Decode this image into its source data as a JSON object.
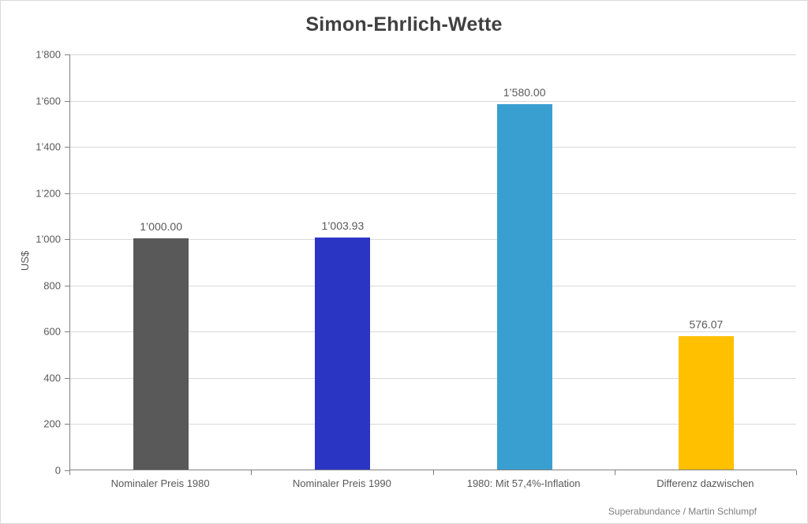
{
  "title": "Simon-Ehrlich-Wette",
  "credit": "Superabundance / Martin Schlumpf",
  "chart_data": {
    "type": "bar",
    "title": "Simon-Ehrlich-Wette",
    "xlabel": "",
    "ylabel": "US$",
    "ylim": [
      0,
      1800
    ],
    "ytick_step": 200,
    "grid": true,
    "legend": "none",
    "categories": [
      "Nominaler Preis 1980",
      "Nominaler Preis 1990",
      "1980: Mit 57,4%-Inflation",
      "Differenz dazwischen"
    ],
    "values": [
      1000.0,
      1003.93,
      1580.0,
      576.07
    ],
    "value_labels": [
      "1’000.00",
      "1’003.93",
      "1’580.00",
      "576.07"
    ],
    "bar_colors": [
      "#595959",
      "#2B35C4",
      "#399FD0",
      "#FFC000"
    ],
    "ytick_labels": [
      "0",
      "200",
      "400",
      "600",
      "800",
      "1’000",
      "1’200",
      "1’400",
      "1’600",
      "1’800"
    ]
  },
  "colors": {
    "title_text": "#404040",
    "axis_text": "#595959",
    "gridline": "#D9D9D9",
    "axis_line": "#808080",
    "credit_text": "#7F7F7F",
    "canvas_border": "#D9D9D9"
  }
}
